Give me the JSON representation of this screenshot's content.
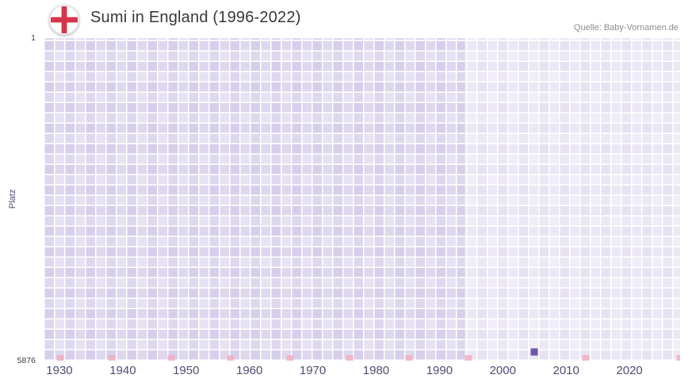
{
  "header": {
    "title": "Sumi in England (1996-2022)",
    "source": "Quelle: Baby-Vornamen.de"
  },
  "chart_data": {
    "type": "scatter",
    "title": "Sumi in England (1996-2022)",
    "xlabel": "",
    "ylabel": "Platz",
    "points": [
      {
        "x": 2005,
        "y": 5717
      }
    ],
    "xlim": [
      1927.5,
      2028
    ],
    "y_axis": {
      "top": 1,
      "bottom": 5876
    },
    "x_ticks": [
      1930,
      1940,
      1950,
      1960,
      1970,
      1980,
      1990,
      2000,
      2010,
      2020
    ],
    "y_ticks": [
      1,
      5876
    ],
    "grid": true,
    "legend": false,
    "point_color": "#6f55ad",
    "grid_color": "#e7e2f3",
    "highlight_region": {
      "from": 1994,
      "to": 2028
    },
    "decor_marks_frac": [
      0.026,
      0.107,
      0.2,
      0.294,
      0.387,
      0.481,
      0.574,
      0.667,
      0.852,
      1.0
    ],
    "decor_mark_color": "#f1abbe"
  }
}
